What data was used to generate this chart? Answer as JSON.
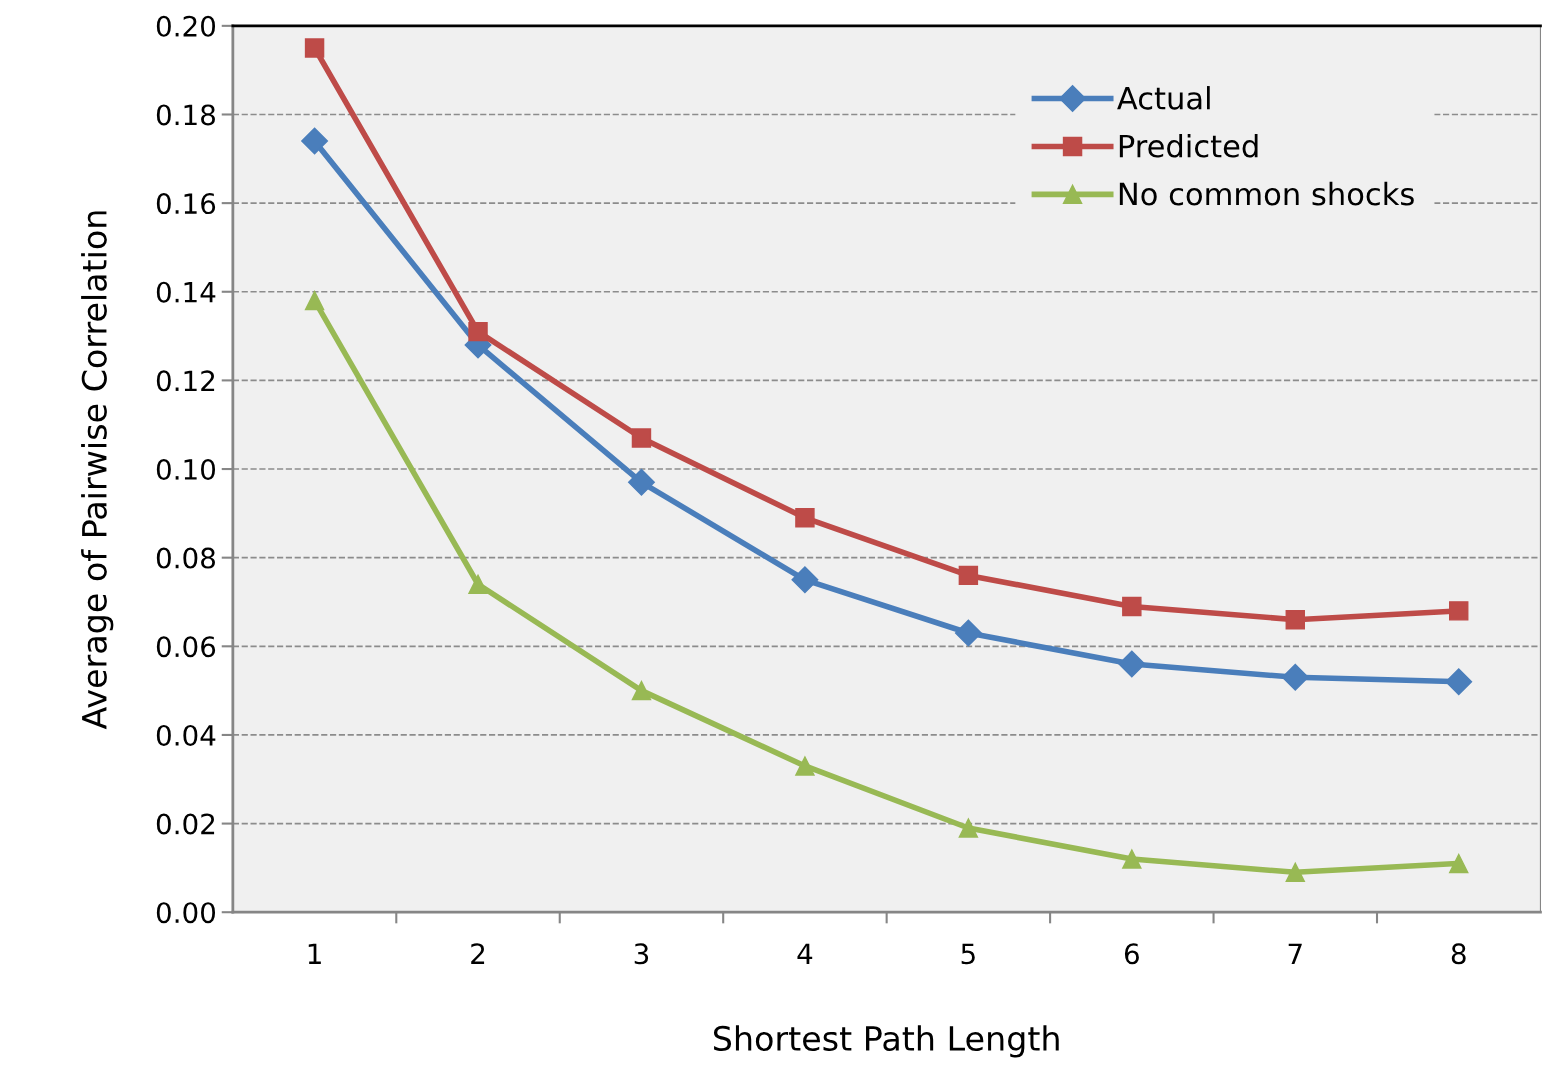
{
  "chart_data": {
    "type": "line",
    "xlabel": "Shortest Path Length",
    "ylabel": "Average of Pairwise Correlation",
    "categories": [
      "1",
      "2",
      "3",
      "4",
      "5",
      "6",
      "7",
      "8"
    ],
    "series": [
      {
        "name": "Actual",
        "color": "#4a7ebb",
        "marker": "diamond",
        "values": [
          0.174,
          0.128,
          0.097,
          0.075,
          0.063,
          0.056,
          0.053,
          0.052
        ]
      },
      {
        "name": "Predicted",
        "color": "#be4b48",
        "marker": "square",
        "values": [
          0.195,
          0.131,
          0.107,
          0.089,
          0.076,
          0.069,
          0.066,
          0.068
        ]
      },
      {
        "name": "No common shocks",
        "color": "#98b954",
        "marker": "triangle",
        "values": [
          0.138,
          0.074,
          0.05,
          0.033,
          0.019,
          0.012,
          0.009,
          0.011
        ]
      }
    ],
    "ylim": [
      0,
      0.2
    ],
    "yticks": [
      {
        "value": 0,
        "label": "0.00"
      },
      {
        "value": 0.02,
        "label": "0.02"
      },
      {
        "value": 0.04,
        "label": "0.04"
      },
      {
        "value": 0.06,
        "label": "0.06"
      },
      {
        "value": 0.08,
        "label": "0.08"
      },
      {
        "value": 0.1,
        "label": "0.10"
      },
      {
        "value": 0.12,
        "label": "0.12"
      },
      {
        "value": 0.14,
        "label": "0.14"
      },
      {
        "value": 0.16,
        "label": "0.16"
      },
      {
        "value": 0.18,
        "label": "0.18"
      },
      {
        "value": 0.2,
        "label": "0.20"
      }
    ],
    "grid": "y",
    "legend": "top right",
    "line_style": "solid"
  }
}
